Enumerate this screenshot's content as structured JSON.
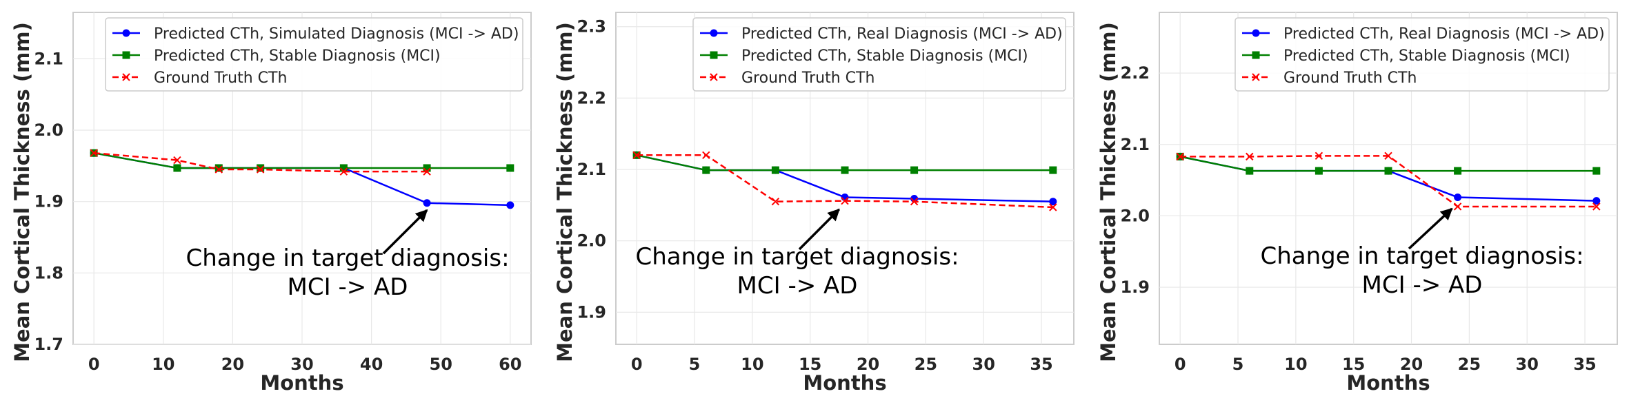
{
  "chart_data": [
    {
      "type": "line",
      "title": "",
      "xlabel": "Months",
      "ylabel": "Mean Cortical Thickness (mm)",
      "xlim": [
        -3,
        63
      ],
      "ylim": [
        1.7,
        2.165
      ],
      "xticks": [
        0,
        10,
        20,
        30,
        40,
        50,
        60
      ],
      "xtick_labels": [
        "0",
        "10",
        "20",
        "30",
        "40",
        "50",
        "60"
      ],
      "yticks": [
        1.7,
        1.8,
        1.9,
        2.0,
        2.1
      ],
      "ytick_labels": [
        "1.7",
        "1.8",
        "1.9",
        "2.0",
        "2.1"
      ],
      "legend_position": "top-right",
      "series": [
        {
          "name": "Predicted CTh, Simulated Diagnosis (MCI -> AD)",
          "color": "#0000ff",
          "marker": "circle",
          "dash": false,
          "x": [
            0,
            12,
            18,
            24,
            36,
            48,
            60
          ],
          "y": [
            1.968,
            1.947,
            1.947,
            1.947,
            1.947,
            1.898,
            1.895
          ]
        },
        {
          "name": "Predicted CTh, Stable Diagnosis (MCI)",
          "color": "#008000",
          "marker": "square",
          "dash": false,
          "x": [
            0,
            12,
            18,
            24,
            36,
            48,
            60
          ],
          "y": [
            1.968,
            1.947,
            1.947,
            1.947,
            1.947,
            1.947,
            1.947
          ]
        },
        {
          "name": "Ground Truth CTh",
          "color": "#ff0000",
          "marker": "x",
          "dash": true,
          "x": [
            0,
            12,
            18,
            24,
            36,
            48
          ],
          "y": [
            1.968,
            1.958,
            1.945,
            1.945,
            1.942,
            1.942
          ]
        }
      ],
      "annotation": {
        "line1": "Change in target diagnosis:",
        "line2": "MCI -> AD",
        "arrow_to_x": 48,
        "arrow_to_y": 1.888
      }
    },
    {
      "type": "line",
      "title": "",
      "xlabel": "Months",
      "ylabel": "Mean Cortical Thickness (mm)",
      "xlim": [
        -1.8,
        37.8
      ],
      "ylim": [
        1.855,
        2.32
      ],
      "xticks": [
        0,
        5,
        10,
        15,
        20,
        25,
        30,
        35
      ],
      "xtick_labels": [
        "0",
        "5",
        "10",
        "15",
        "20",
        "25",
        "30",
        "35"
      ],
      "yticks": [
        1.9,
        2.0,
        2.1,
        2.2,
        2.3
      ],
      "ytick_labels": [
        "1.9",
        "2.0",
        "2.1",
        "2.2",
        "2.3"
      ],
      "legend_position": "top-right",
      "series": [
        {
          "name": "Predicted CTh, Real Diagnosis (MCI -> AD)",
          "color": "#0000ff",
          "marker": "circle",
          "dash": false,
          "x": [
            0,
            6,
            12,
            18,
            24,
            36
          ],
          "y": [
            2.12,
            2.099,
            2.099,
            2.061,
            2.059,
            2.055
          ]
        },
        {
          "name": "Predicted CTh, Stable Diagnosis (MCI)",
          "color": "#008000",
          "marker": "square",
          "dash": false,
          "x": [
            0,
            6,
            12,
            18,
            24,
            36
          ],
          "y": [
            2.12,
            2.099,
            2.099,
            2.099,
            2.099,
            2.099
          ]
        },
        {
          "name": "Ground Truth CTh",
          "color": "#ff0000",
          "marker": "x",
          "dash": true,
          "x": [
            0,
            6,
            12,
            18,
            24,
            36
          ],
          "y": [
            2.12,
            2.12,
            2.055,
            2.056,
            2.055,
            2.047
          ]
        }
      ],
      "annotation": {
        "line1": "Change in target diagnosis:",
        "line2": "MCI -> AD",
        "arrow_to_x": 17.5,
        "arrow_to_y": 2.044
      }
    },
    {
      "type": "line",
      "title": "",
      "xlabel": "Months",
      "ylabel": "Mean Cortical Thickness (mm)",
      "xlim": [
        -1.8,
        37.8
      ],
      "ylim": [
        1.82,
        2.285
      ],
      "xticks": [
        0,
        5,
        10,
        15,
        20,
        25,
        30,
        35
      ],
      "xtick_labels": [
        "0",
        "5",
        "10",
        "15",
        "20",
        "25",
        "30",
        "35"
      ],
      "yticks": [
        1.9,
        2.0,
        2.1,
        2.2
      ],
      "ytick_labels": [
        "1.9",
        "2.0",
        "2.1",
        "2.2"
      ],
      "legend_position": "top-right",
      "series": [
        {
          "name": "Predicted CTh, Real Diagnosis (MCI -> AD)",
          "color": "#0000ff",
          "marker": "circle",
          "dash": false,
          "x": [
            0,
            6,
            12,
            18,
            24,
            36
          ],
          "y": [
            2.083,
            2.063,
            2.063,
            2.063,
            2.026,
            2.021
          ]
        },
        {
          "name": "Predicted CTh, Stable Diagnosis (MCI)",
          "color": "#008000",
          "marker": "square",
          "dash": false,
          "x": [
            0,
            6,
            12,
            18,
            24,
            36
          ],
          "y": [
            2.083,
            2.063,
            2.063,
            2.063,
            2.063,
            2.063
          ]
        },
        {
          "name": "Ground Truth CTh",
          "color": "#ff0000",
          "marker": "x",
          "dash": true,
          "x": [
            0,
            6,
            12,
            18,
            24,
            36
          ],
          "y": [
            2.083,
            2.083,
            2.084,
            2.084,
            2.013,
            2.013
          ]
        }
      ],
      "annotation": {
        "line1": "Change in target diagnosis:",
        "line2": "MCI -> AD",
        "arrow_to_x": 23.5,
        "arrow_to_y": 2.01
      }
    }
  ]
}
